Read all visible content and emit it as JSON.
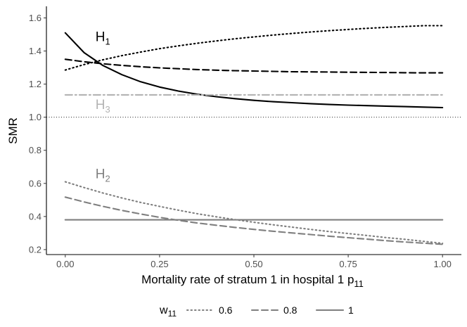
{
  "chart_data": {
    "type": "line",
    "xlabel": "Mortality rate of stratum 1 in hospital 1 p",
    "xlabel_sub": "11",
    "ylabel": "SMR",
    "xlim": [
      -0.05,
      1.05
    ],
    "ylim": [
      0.17,
      1.67
    ],
    "x_ticks": [
      {
        "value": 0.0,
        "label": "0.00"
      },
      {
        "value": 0.25,
        "label": "0.25"
      },
      {
        "value": 0.5,
        "label": "0.50"
      },
      {
        "value": 0.75,
        "label": "0.75"
      },
      {
        "value": 1.0,
        "label": "1.00"
      }
    ],
    "y_ticks": [
      {
        "value": 0.2,
        "label": "0.2"
      },
      {
        "value": 0.4,
        "label": "0.4"
      },
      {
        "value": 0.6,
        "label": "0.6"
      },
      {
        "value": 0.8,
        "label": "0.8"
      },
      {
        "value": 1.0,
        "label": "1.0"
      },
      {
        "value": 1.2,
        "label": "1.2"
      },
      {
        "value": 1.4,
        "label": "1.4"
      },
      {
        "value": 1.6,
        "label": "1.6"
      }
    ],
    "reference_line": {
      "y": 1.0,
      "style": "dotted"
    },
    "x": [
      0,
      0.05,
      0.1,
      0.15,
      0.2,
      0.25,
      0.3,
      0.35,
      0.4,
      0.45,
      0.5,
      0.55,
      0.6,
      0.65,
      0.7,
      0.75,
      0.8,
      0.85,
      0.9,
      0.95,
      1.0
    ],
    "series": [
      {
        "name": "H1 w11=0.6",
        "group": "H1",
        "w11": "0.6",
        "linetype": "dotted",
        "color": "#000000",
        "values": [
          1.285,
          1.318,
          1.347,
          1.372,
          1.394,
          1.414,
          1.431,
          1.447,
          1.461,
          1.474,
          1.485,
          1.496,
          1.506,
          1.515,
          1.523,
          1.53,
          1.537,
          1.543,
          1.548,
          1.553,
          1.553
        ]
      },
      {
        "name": "H1 w11=0.8",
        "group": "H1",
        "w11": "0.8",
        "linetype": "dashed",
        "color": "#000000",
        "values": [
          1.35,
          1.335,
          1.323,
          1.313,
          1.305,
          1.298,
          1.293,
          1.288,
          1.284,
          1.281,
          1.279,
          1.277,
          1.275,
          1.274,
          1.273,
          1.272,
          1.271,
          1.27,
          1.269,
          1.268,
          1.268
        ]
      },
      {
        "name": "H1 w11=1",
        "group": "H1",
        "w11": "1",
        "linetype": "solid",
        "color": "#000000",
        "values": [
          1.51,
          1.39,
          1.312,
          1.257,
          1.214,
          1.182,
          1.158,
          1.139,
          1.124,
          1.112,
          1.102,
          1.094,
          1.088,
          1.082,
          1.077,
          1.073,
          1.07,
          1.067,
          1.064,
          1.061,
          1.058
        ]
      },
      {
        "name": "H3",
        "group": "H3",
        "w11": "all",
        "linetype": "dashdot",
        "color": "#b3b3b3",
        "values": [
          1.135,
          1.135,
          1.135,
          1.135,
          1.135,
          1.135,
          1.135,
          1.135,
          1.135,
          1.135,
          1.135,
          1.135,
          1.135,
          1.135,
          1.135,
          1.135,
          1.135,
          1.135,
          1.135,
          1.135,
          1.135
        ]
      },
      {
        "name": "H2 w11=0.6",
        "group": "H2",
        "w11": "0.6",
        "linetype": "dotted",
        "color": "#7f7f7f",
        "values": [
          0.61,
          0.575,
          0.542,
          0.512,
          0.485,
          0.461,
          0.438,
          0.417,
          0.398,
          0.381,
          0.365,
          0.35,
          0.336,
          0.322,
          0.309,
          0.297,
          0.285,
          0.273,
          0.262,
          0.25,
          0.238
        ]
      },
      {
        "name": "H2 w11=0.8",
        "group": "H2",
        "w11": "0.8",
        "linetype": "dashed",
        "color": "#7f7f7f",
        "values": [
          0.517,
          0.488,
          0.461,
          0.437,
          0.415,
          0.395,
          0.377,
          0.361,
          0.347,
          0.334,
          0.322,
          0.311,
          0.301,
          0.291,
          0.281,
          0.272,
          0.263,
          0.254,
          0.246,
          0.239,
          0.232
        ]
      },
      {
        "name": "H2 w11=1",
        "group": "H2",
        "w11": "1",
        "linetype": "solid",
        "color": "#7f7f7f",
        "values": [
          0.38,
          0.38,
          0.38,
          0.38,
          0.38,
          0.38,
          0.38,
          0.38,
          0.38,
          0.38,
          0.38,
          0.38,
          0.38,
          0.38,
          0.38,
          0.38,
          0.38,
          0.38,
          0.38,
          0.38,
          0.38
        ]
      }
    ],
    "curve_labels": [
      {
        "text": "H",
        "sub": "1",
        "x": 0.08,
        "y": 1.46,
        "color": "#000000"
      },
      {
        "text": "H",
        "sub": "3",
        "x": 0.08,
        "y": 1.05,
        "color": "#b3b3b3"
      },
      {
        "text": "H",
        "sub": "2",
        "x": 0.08,
        "y": 0.63,
        "color": "#7f7f7f"
      }
    ],
    "legend": {
      "position": "bottom",
      "title": "w",
      "title_sub": "11",
      "items": [
        {
          "label": "0.6",
          "linetype": "dotted",
          "color": "#7f7f7f"
        },
        {
          "label": "0.8",
          "linetype": "dashed",
          "color": "#7f7f7f"
        },
        {
          "label": "1",
          "linetype": "solid",
          "color": "#7f7f7f"
        }
      ]
    }
  }
}
